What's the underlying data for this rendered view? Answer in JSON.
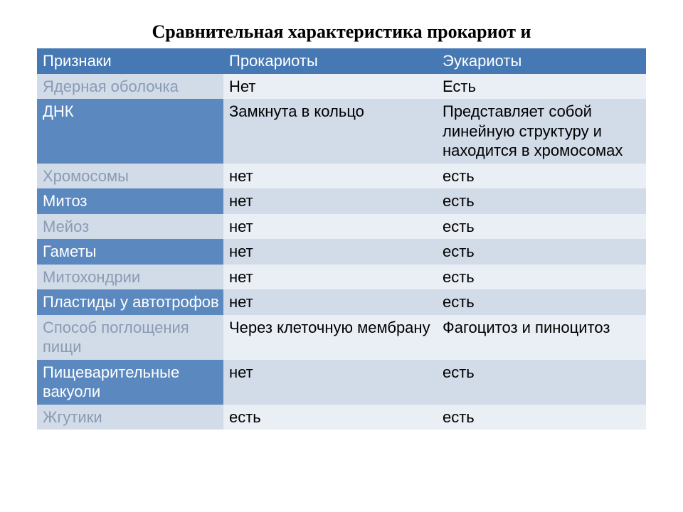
{
  "title": "Сравнительная характеристика прокариот и",
  "colors": {
    "header_bg": "#4678b4",
    "label_dark_bg": "#5a88bf",
    "label_light_bg": "#d2dbe8",
    "data_light_bg": "#eaeef5",
    "data_dark_bg": "#d2dbe8",
    "label_text_white": "#ffffff",
    "label_text_muted": "#8a9bb3",
    "data_text": "#000000"
  },
  "columns": [
    "Признаки",
    "Прокариоты",
    "Эукариоты"
  ],
  "rows": [
    {
      "label": "Ядерная оболочка",
      "c1": "Нет",
      "c2": "Есть",
      "label_justify": false,
      "c1_justify": false,
      "c2_justify": false
    },
    {
      "label": "ДНК",
      "c1": "Замкнута в кольцо",
      "c2": "Представляет собой линейную структуру и находится в хромосомах",
      "label_justify": false,
      "c1_justify": false,
      "c2_justify": true
    },
    {
      "label": "Хромосомы",
      "c1": "нет",
      "c2": "есть",
      "label_justify": false,
      "c1_justify": false,
      "c2_justify": false
    },
    {
      "label": "Митоз",
      "c1": "нет",
      "c2": "есть",
      "label_justify": false,
      "c1_justify": false,
      "c2_justify": false
    },
    {
      "label": "Мейоз",
      "c1": "нет",
      "c2": "есть",
      "label_justify": false,
      "c1_justify": false,
      "c2_justify": false
    },
    {
      "label": "Гаметы",
      "c1": "нет",
      "c2": "есть",
      "label_justify": false,
      "c1_justify": false,
      "c2_justify": false
    },
    {
      "label": "Митохондрии",
      "c1": "нет",
      "c2": "есть",
      "label_justify": false,
      "c1_justify": false,
      "c2_justify": false
    },
    {
      "label": "Пластиды у автотрофов",
      "c1": "нет",
      "c2": "есть",
      "label_justify": true,
      "c1_justify": false,
      "c2_justify": false
    },
    {
      "label": "Способ поглощения пищи",
      "c1": "Через клеточную мембрану",
      "c2": "Фагоцитоз и пиноцитоз",
      "label_justify": true,
      "c1_justify": true,
      "c2_justify": false
    },
    {
      "label": "Пищеварительные вакуоли",
      "c1": "нет",
      "c2": "есть",
      "label_justify": false,
      "c1_justify": false,
      "c2_justify": false
    },
    {
      "label": "Жгутики",
      "c1": "есть",
      "c2": "есть",
      "label_justify": false,
      "c1_justify": false,
      "c2_justify": false
    }
  ]
}
